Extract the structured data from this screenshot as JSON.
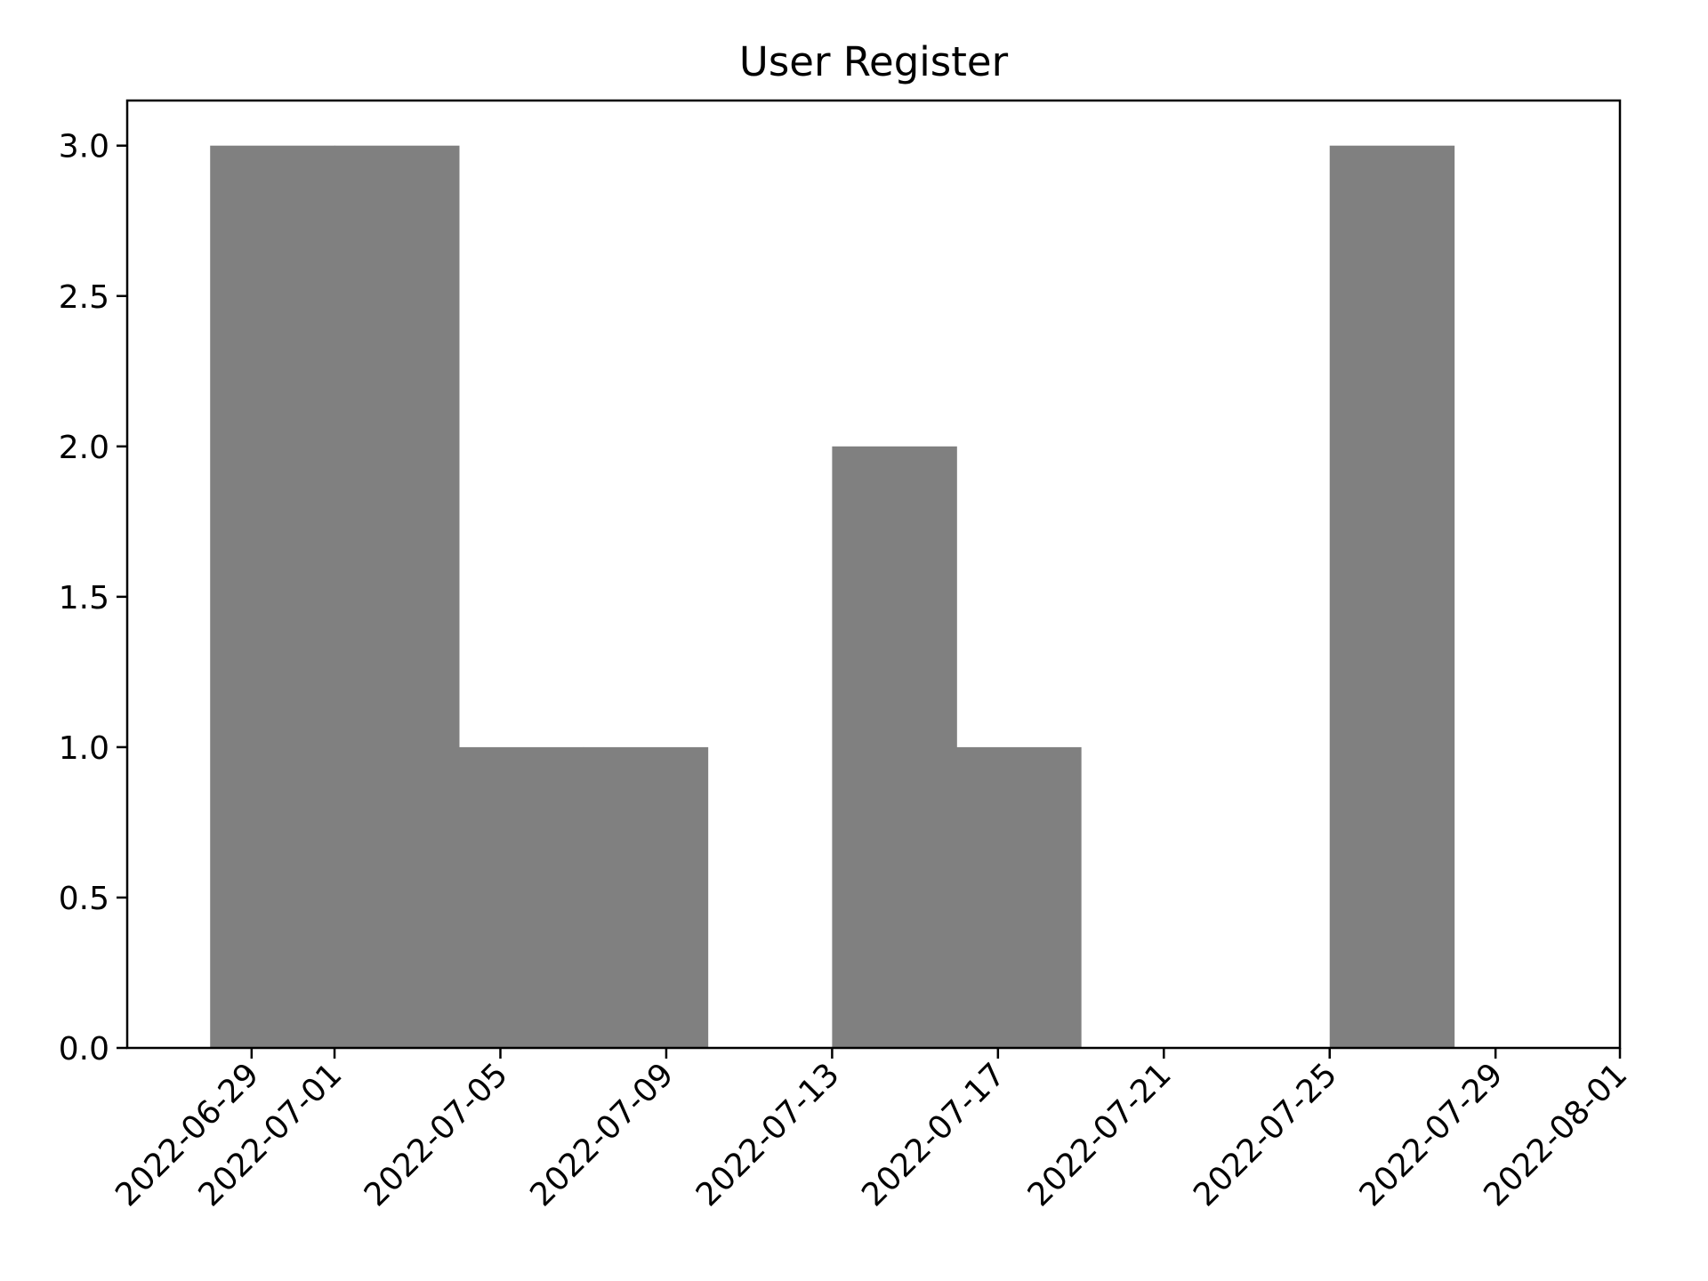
{
  "chart_data": {
    "type": "bar",
    "title": "User Register",
    "xlabel": "",
    "ylabel": "",
    "x_axis_type": "date",
    "xlim": [
      "2022-06-26",
      "2022-08-01"
    ],
    "ylim": [
      0,
      3.15
    ],
    "grid": false,
    "legend": "none",
    "bar_color": "#808080",
    "bin_edges": [
      "2022-06-28",
      "2022-07-01",
      "2022-07-04",
      "2022-07-07",
      "2022-07-10",
      "2022-07-13",
      "2022-07-16",
      "2022-07-19",
      "2022-07-22",
      "2022-07-25",
      "2022-07-28",
      "2022-07-31"
    ],
    "values": [
      3,
      3,
      1,
      1,
      0,
      2,
      1,
      0,
      0,
      3,
      0
    ],
    "x_ticks": [
      "2022-06-29",
      "2022-07-01",
      "2022-07-05",
      "2022-07-09",
      "2022-07-13",
      "2022-07-17",
      "2022-07-21",
      "2022-07-25",
      "2022-07-29",
      "2022-08-01"
    ],
    "y_ticks": [
      "0.0",
      "0.5",
      "1.0",
      "1.5",
      "2.0",
      "2.5",
      "3.0"
    ]
  }
}
